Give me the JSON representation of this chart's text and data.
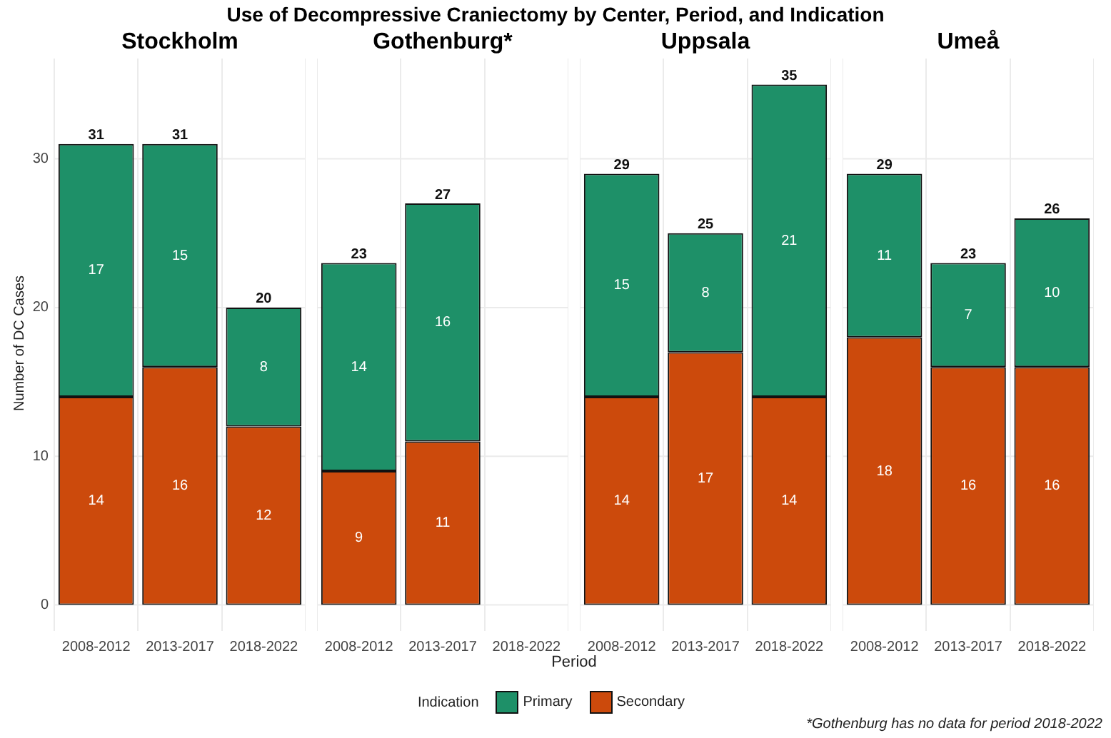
{
  "chart_data": [
    {
      "type": "bar",
      "title": "Stockholm",
      "ylabel": "Number of DC Cases",
      "categories": [
        "2008-2012",
        "2013-2017",
        "2018-2022"
      ],
      "stacked": true,
      "ylim": [
        -1.75,
        36.75
      ],
      "yticks": [
        0,
        10,
        20,
        30
      ],
      "grid": true,
      "legend": "bottom",
      "data_labels": true,
      "series": [
        {
          "name": "Secondary",
          "color": "#cc4a0c",
          "values": [
            14,
            16,
            12
          ]
        },
        {
          "name": "Primary",
          "color": "#1e9068",
          "values": [
            17,
            15,
            8
          ]
        }
      ],
      "totals": [
        "31",
        "31",
        "20"
      ]
    },
    {
      "type": "bar",
      "title": "Gothenburg*",
      "categories": [
        "2008-2012",
        "2013-2017",
        "2018-2022"
      ],
      "stacked": true,
      "ylim": [
        -1.75,
        36.75
      ],
      "yticks": [
        0,
        10,
        20,
        30
      ],
      "grid": true,
      "tick_labels": "x",
      "data_labels": true,
      "series": [
        {
          "color": "#cc4a0c",
          "values": [
            9,
            11,
            null
          ]
        },
        {
          "color": "#1e9068",
          "values": [
            14,
            16,
            null
          ]
        }
      ],
      "totals": [
        "23",
        "27",
        null
      ]
    },
    {
      "type": "bar",
      "title": "Uppsala",
      "categories": [
        "2008-2012",
        "2013-2017",
        "2018-2022"
      ],
      "stacked": true,
      "ylim": [
        -1.75,
        36.75
      ],
      "yticks": [
        0,
        10,
        20,
        30
      ],
      "grid": true,
      "tick_labels": "x",
      "data_labels": true,
      "series": [
        {
          "color": "#cc4a0c",
          "values": [
            14,
            17,
            14
          ]
        },
        {
          "color": "#1e9068",
          "values": [
            15,
            8,
            21
          ]
        }
      ],
      "totals": [
        "29",
        "25",
        "35"
      ]
    },
    {
      "type": "bar",
      "title": "Umeå",
      "categories": [
        "2008-2012",
        "2013-2017",
        "2018-2022"
      ],
      "stacked": true,
      "ylim": [
        -1.75,
        36.75
      ],
      "yticks": [
        0,
        10,
        20,
        30
      ],
      "grid": true,
      "tick_labels": "x",
      "data_labels": true,
      "series": [
        {
          "color": "#cc4a0c",
          "values": [
            18,
            16,
            16
          ]
        },
        {
          "color": "#1e9068",
          "values": [
            11,
            7,
            10
          ]
        }
      ],
      "totals": [
        "29",
        "23",
        "26"
      ]
    },
    {
      "type": "other",
      "title": "Use of Decompressive Craniectomy by Center, Period, and Indication",
      "xlabel": "Period",
      "legend_title": "Indication",
      "annotations": [
        "*Gothenburg has no data for period 2018-2022"
      ]
    }
  ]
}
